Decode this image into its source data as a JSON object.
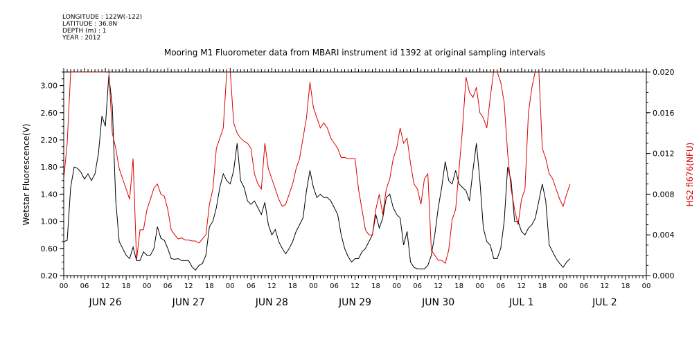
{
  "metadata": {
    "longitude": "LONGITUDE : 122W(-122)",
    "latitude": "LATITUDE : 36.8N",
    "depth": "DEPTH (m) : 1",
    "year": "YEAR : 2012"
  },
  "chart_data": {
    "type": "line",
    "title": "Mooring M1 Fluorometer data from MBARI instrument id 1392 at original sampling intervals",
    "x_axis": {
      "unit": "hours since JUN 26 00",
      "range": [
        0,
        168
      ],
      "hour_ticks": [
        "00",
        "06",
        "12",
        "18",
        "00",
        "06",
        "12",
        "18",
        "00",
        "06",
        "12",
        "18",
        "00",
        "06",
        "12",
        "18",
        "00",
        "06",
        "12",
        "18",
        "00",
        "06",
        "12",
        "18",
        "00",
        "06",
        "12",
        "18",
        "00"
      ],
      "day_labels": [
        "JUN 26",
        "JUN 27",
        "JUN 28",
        "JUN 29",
        "JUN 30",
        "JUL  1",
        "JUL  2"
      ]
    },
    "y_left": {
      "label": "Wetstar Fluorescence(V)",
      "range": [
        0.2,
        3.2
      ],
      "ticks": [
        "0.20",
        "0.60",
        "1.00",
        "1.40",
        "1.80",
        "2.20",
        "2.60",
        "3.00"
      ],
      "color": "#000000"
    },
    "y_right": {
      "label": "HS2 fl676(NFU)",
      "range": [
        0.0,
        0.02
      ],
      "ticks": [
        "0.000",
        "0.004",
        "0.008",
        "0.012",
        "0.016",
        "0.020"
      ],
      "color": "#dd0000"
    },
    "series": [
      {
        "axis": "left",
        "color": "#000000",
        "points": [
          [
            0,
            0.7
          ],
          [
            1,
            0.72
          ],
          [
            2,
            1.5
          ],
          [
            3,
            1.8
          ],
          [
            4,
            1.78
          ],
          [
            5,
            1.72
          ],
          [
            6,
            1.62
          ],
          [
            7,
            1.7
          ],
          [
            8,
            1.6
          ],
          [
            9,
            1.7
          ],
          [
            10,
            2.0
          ],
          [
            11,
            2.55
          ],
          [
            12,
            2.4
          ],
          [
            13,
            3.15
          ],
          [
            14,
            2.7
          ],
          [
            15,
            1.3
          ],
          [
            16,
            0.7
          ],
          [
            17,
            0.6
          ],
          [
            18,
            0.5
          ],
          [
            19,
            0.45
          ],
          [
            20,
            0.62
          ],
          [
            21,
            0.42
          ],
          [
            22,
            0.42
          ],
          [
            23,
            0.55
          ],
          [
            24,
            0.5
          ],
          [
            25,
            0.5
          ],
          [
            26,
            0.6
          ],
          [
            27,
            0.92
          ],
          [
            28,
            0.75
          ],
          [
            29,
            0.72
          ],
          [
            30,
            0.6
          ],
          [
            31,
            0.45
          ],
          [
            32,
            0.44
          ],
          [
            33,
            0.45
          ],
          [
            34,
            0.42
          ],
          [
            35,
            0.42
          ],
          [
            36,
            0.42
          ],
          [
            37,
            0.33
          ],
          [
            38,
            0.28
          ],
          [
            39,
            0.35
          ],
          [
            40,
            0.38
          ],
          [
            41,
            0.5
          ],
          [
            42,
            0.92
          ],
          [
            43,
            1.0
          ],
          [
            44,
            1.2
          ],
          [
            45,
            1.5
          ],
          [
            46,
            1.7
          ],
          [
            47,
            1.6
          ],
          [
            48,
            1.55
          ],
          [
            49,
            1.75
          ],
          [
            50,
            2.15
          ],
          [
            51,
            1.6
          ],
          [
            52,
            1.5
          ],
          [
            53,
            1.3
          ],
          [
            54,
            1.25
          ],
          [
            55,
            1.3
          ],
          [
            56,
            1.2
          ],
          [
            57,
            1.1
          ],
          [
            58,
            1.28
          ],
          [
            59,
            0.95
          ],
          [
            60,
            0.8
          ],
          [
            61,
            0.88
          ],
          [
            62,
            0.7
          ],
          [
            63,
            0.6
          ],
          [
            64,
            0.52
          ],
          [
            65,
            0.6
          ],
          [
            66,
            0.7
          ],
          [
            67,
            0.85
          ],
          [
            68,
            0.95
          ],
          [
            69,
            1.05
          ],
          [
            70,
            1.45
          ],
          [
            71,
            1.75
          ],
          [
            72,
            1.5
          ],
          [
            73,
            1.35
          ],
          [
            74,
            1.4
          ],
          [
            75,
            1.35
          ],
          [
            76,
            1.35
          ],
          [
            77,
            1.3
          ],
          [
            78,
            1.2
          ],
          [
            79,
            1.1
          ],
          [
            80,
            0.8
          ],
          [
            81,
            0.6
          ],
          [
            82,
            0.48
          ],
          [
            83,
            0.4
          ],
          [
            84,
            0.45
          ],
          [
            85,
            0.45
          ],
          [
            86,
            0.55
          ],
          [
            87,
            0.6
          ],
          [
            88,
            0.7
          ],
          [
            89,
            0.8
          ],
          [
            90,
            1.1
          ],
          [
            91,
            0.9
          ],
          [
            92,
            1.05
          ],
          [
            93,
            1.35
          ],
          [
            94,
            1.4
          ],
          [
            95,
            1.2
          ],
          [
            96,
            1.1
          ],
          [
            97,
            1.05
          ],
          [
            98,
            0.65
          ],
          [
            99,
            0.85
          ],
          [
            100,
            0.4
          ],
          [
            101,
            0.32
          ],
          [
            102,
            0.3
          ],
          [
            103,
            0.3
          ],
          [
            104,
            0.3
          ],
          [
            105,
            0.35
          ],
          [
            106,
            0.5
          ],
          [
            107,
            0.8
          ],
          [
            108,
            1.2
          ],
          [
            109,
            1.5
          ],
          [
            110,
            1.88
          ],
          [
            111,
            1.6
          ],
          [
            112,
            1.55
          ],
          [
            113,
            1.75
          ],
          [
            114,
            1.55
          ],
          [
            115,
            1.5
          ],
          [
            116,
            1.45
          ],
          [
            117,
            1.3
          ],
          [
            118,
            1.75
          ],
          [
            119,
            2.15
          ],
          [
            120,
            1.6
          ],
          [
            121,
            0.9
          ],
          [
            122,
            0.7
          ],
          [
            123,
            0.65
          ],
          [
            124,
            0.45
          ],
          [
            125,
            0.45
          ],
          [
            126,
            0.6
          ],
          [
            127,
            1.0
          ],
          [
            128,
            1.8
          ],
          [
            129,
            1.6
          ],
          [
            130,
            1.0
          ],
          [
            131,
            1.0
          ],
          [
            132,
            0.85
          ],
          [
            133,
            0.8
          ],
          [
            134,
            0.9
          ],
          [
            135,
            0.95
          ],
          [
            136,
            1.05
          ],
          [
            137,
            1.3
          ],
          [
            138,
            1.55
          ],
          [
            139,
            1.3
          ],
          [
            140,
            0.65
          ],
          [
            141,
            0.55
          ],
          [
            142,
            0.45
          ],
          [
            143,
            0.38
          ],
          [
            144,
            0.32
          ],
          [
            145,
            0.4
          ],
          [
            146,
            0.45
          ]
        ]
      },
      {
        "axis": "right",
        "color": "#dd0000",
        "points": [
          [
            0,
            0.0095
          ],
          [
            1,
            0.013
          ],
          [
            2,
            0.02
          ],
          [
            12,
            0.02
          ],
          [
            13,
            0.0205
          ],
          [
            14,
            0.014
          ],
          [
            15,
            0.0125
          ],
          [
            16,
            0.0105
          ],
          [
            17,
            0.0095
          ],
          [
            18,
            0.0085
          ],
          [
            19,
            0.0075
          ],
          [
            20,
            0.0115
          ],
          [
            21,
            0.0015
          ],
          [
            22,
            0.0045
          ],
          [
            23,
            0.0045
          ],
          [
            24,
            0.0065
          ],
          [
            25,
            0.0075
          ],
          [
            26,
            0.0086
          ],
          [
            27,
            0.009
          ],
          [
            28,
            0.008
          ],
          [
            29,
            0.0078
          ],
          [
            30,
            0.0065
          ],
          [
            31,
            0.0045
          ],
          [
            32,
            0.004
          ],
          [
            33,
            0.0036
          ],
          [
            34,
            0.0037
          ],
          [
            35,
            0.0035
          ],
          [
            36,
            0.0035
          ],
          [
            37,
            0.0034
          ],
          [
            38,
            0.0034
          ],
          [
            39,
            0.0032
          ],
          [
            40,
            0.0036
          ],
          [
            41,
            0.004
          ],
          [
            42,
            0.007
          ],
          [
            43,
            0.0085
          ],
          [
            44,
            0.0125
          ],
          [
            45,
            0.0135
          ],
          [
            46,
            0.0145
          ],
          [
            47,
            0.02
          ],
          [
            48,
            0.0205
          ],
          [
            49,
            0.015
          ],
          [
            50,
            0.014
          ],
          [
            51,
            0.0135
          ],
          [
            52,
            0.0132
          ],
          [
            53,
            0.013
          ],
          [
            54,
            0.0125
          ],
          [
            55,
            0.01
          ],
          [
            56,
            0.009
          ],
          [
            57,
            0.0085
          ],
          [
            58,
            0.013
          ],
          [
            59,
            0.0105
          ],
          [
            60,
            0.0095
          ],
          [
            61,
            0.0085
          ],
          [
            62,
            0.0075
          ],
          [
            63,
            0.0068
          ],
          [
            64,
            0.007
          ],
          [
            65,
            0.008
          ],
          [
            66,
            0.009
          ],
          [
            67,
            0.0105
          ],
          [
            68,
            0.0115
          ],
          [
            69,
            0.0135
          ],
          [
            70,
            0.0155
          ],
          [
            71,
            0.019
          ],
          [
            72,
            0.0165
          ],
          [
            73,
            0.0155
          ],
          [
            74,
            0.0145
          ],
          [
            75,
            0.015
          ],
          [
            76,
            0.0145
          ],
          [
            77,
            0.0135
          ],
          [
            78,
            0.013
          ],
          [
            79,
            0.0125
          ],
          [
            80,
            0.0116
          ],
          [
            81,
            0.0116
          ],
          [
            82,
            0.0115
          ],
          [
            83,
            0.0115
          ],
          [
            84,
            0.0115
          ],
          [
            85,
            0.0085
          ],
          [
            86,
            0.0065
          ],
          [
            87,
            0.0045
          ],
          [
            88,
            0.004
          ],
          [
            89,
            0.004
          ],
          [
            90,
            0.0065
          ],
          [
            91,
            0.008
          ],
          [
            92,
            0.006
          ],
          [
            93,
            0.0085
          ],
          [
            94,
            0.0095
          ],
          [
            95,
            0.0115
          ],
          [
            96,
            0.0125
          ],
          [
            97,
            0.0145
          ],
          [
            98,
            0.013
          ],
          [
            99,
            0.0135
          ],
          [
            100,
            0.011
          ],
          [
            101,
            0.009
          ],
          [
            102,
            0.0085
          ],
          [
            103,
            0.007
          ],
          [
            104,
            0.0095
          ],
          [
            105,
            0.01
          ],
          [
            106,
            0.0025
          ],
          [
            107,
            0.002
          ],
          [
            108,
            0.0015
          ],
          [
            109,
            0.0015
          ],
          [
            110,
            0.0012
          ],
          [
            111,
            0.0025
          ],
          [
            112,
            0.0055
          ],
          [
            113,
            0.0065
          ],
          [
            114,
            0.0105
          ],
          [
            115,
            0.0145
          ],
          [
            116,
            0.0195
          ],
          [
            117,
            0.018
          ],
          [
            118,
            0.0175
          ],
          [
            119,
            0.0185
          ],
          [
            120,
            0.016
          ],
          [
            121,
            0.0155
          ],
          [
            122,
            0.0145
          ],
          [
            123,
            0.0175
          ],
          [
            124,
            0.0205
          ],
          [
            125,
            0.02
          ],
          [
            126,
            0.019
          ],
          [
            127,
            0.017
          ],
          [
            128,
            0.012
          ],
          [
            129,
            0.0085
          ],
          [
            130,
            0.0065
          ],
          [
            131,
            0.005
          ],
          [
            132,
            0.0075
          ],
          [
            133,
            0.0085
          ],
          [
            134,
            0.016
          ],
          [
            135,
            0.0185
          ],
          [
            136,
            0.0205
          ],
          [
            137,
            0.0205
          ],
          [
            138,
            0.0125
          ],
          [
            139,
            0.0115
          ],
          [
            140,
            0.01
          ],
          [
            141,
            0.0095
          ],
          [
            142,
            0.0085
          ],
          [
            143,
            0.0075
          ],
          [
            144,
            0.0068
          ],
          [
            145,
            0.008
          ],
          [
            146,
            0.009
          ]
        ]
      }
    ]
  }
}
